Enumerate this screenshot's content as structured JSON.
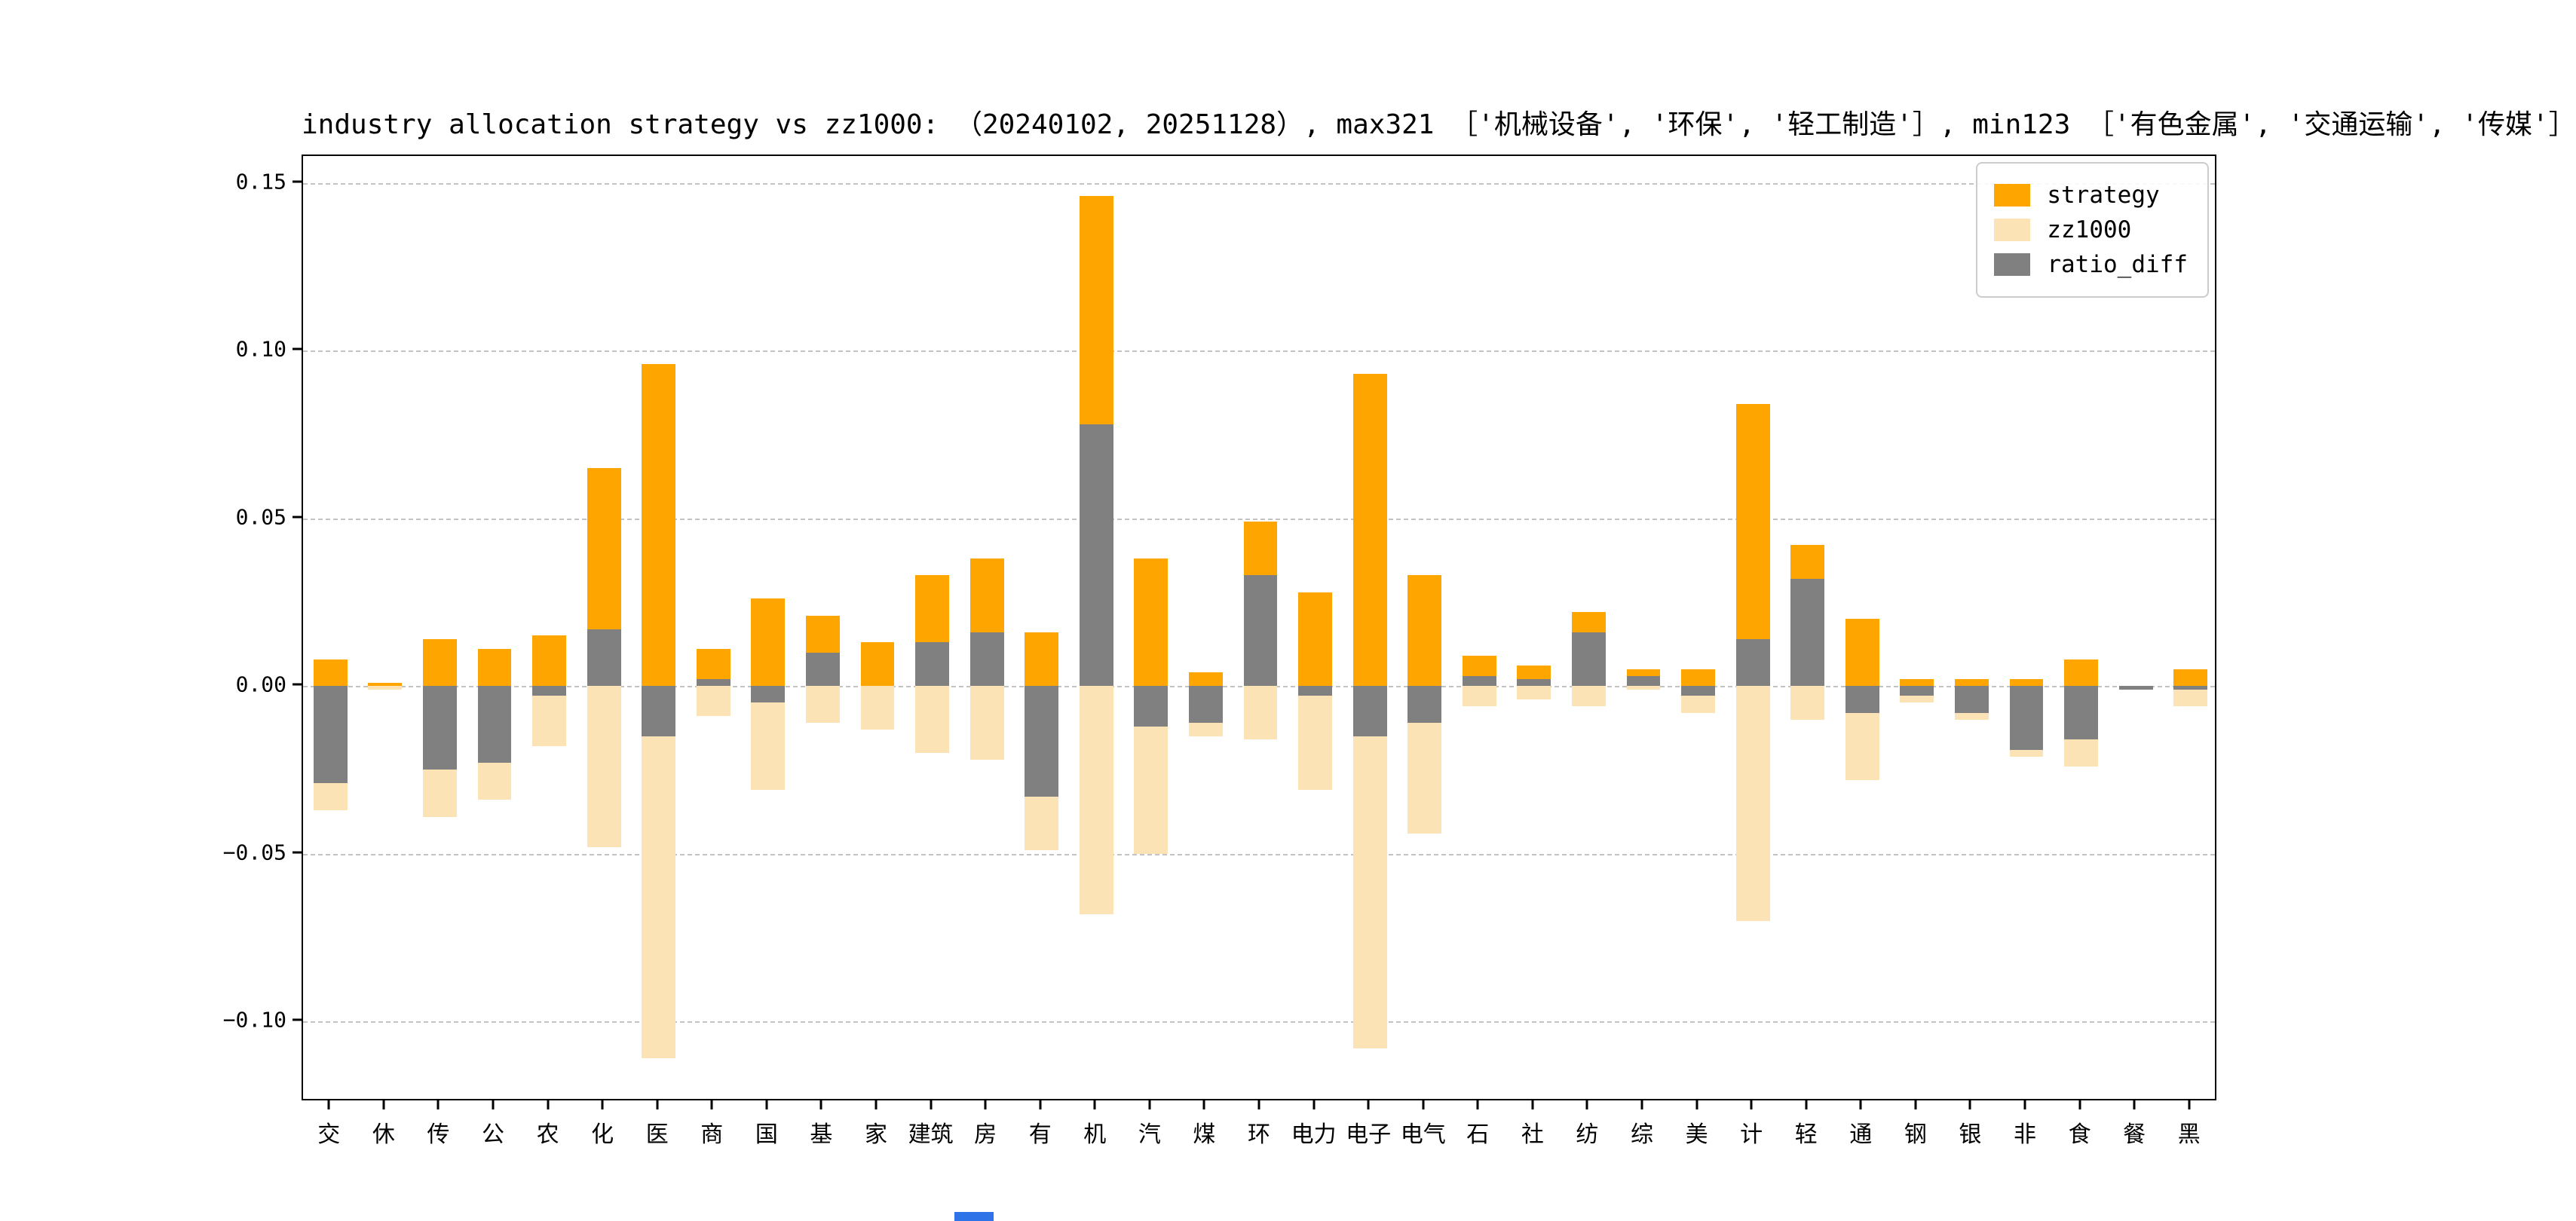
{
  "figure": {
    "background": "#ffffff",
    "grid_color": "#c3c3c3",
    "spine_color": "#000000",
    "artifact_color": "#2e74e8"
  },
  "chart_data": {
    "type": "bar",
    "title": "industry allocation strategy vs zz1000: （20240102, 20251128）, max321 ［'机械设备', '环保', '轻工制造'］, min123 ［'有色金属', '交通运输', '传媒'］",
    "xlabel": "",
    "ylabel": "",
    "ylim": [
      -0.124,
      0.158
    ],
    "grid": "dashed horizontal",
    "legend_position": "upper right",
    "yticks": [
      {
        "value": 0.15,
        "label": "0.15"
      },
      {
        "value": 0.1,
        "label": "0.10"
      },
      {
        "value": 0.05,
        "label": "0.05"
      },
      {
        "value": 0.0,
        "label": "0.00"
      },
      {
        "value": -0.05,
        "label": "−0.05"
      },
      {
        "value": -0.1,
        "label": "−0.10"
      }
    ],
    "categories": [
      "交",
      "休",
      "传",
      "公",
      "农",
      "化",
      "医",
      "商",
      "国",
      "基",
      "家",
      "建筑",
      "房",
      "有",
      "机",
      "汽",
      "煤",
      "环",
      "电力",
      "电子",
      "电气",
      "石",
      "社",
      "纺",
      "综",
      "美",
      "计",
      "轻",
      "通",
      "钢",
      "银",
      "非",
      "食",
      "餐",
      "黑"
    ],
    "series": [
      {
        "name": "strategy",
        "color": "#FFA500",
        "values": [
          0.008,
          0.001,
          0.014,
          0.011,
          0.015,
          0.065,
          0.096,
          0.011,
          0.026,
          0.021,
          0.013,
          0.033,
          0.038,
          0.016,
          0.146,
          0.038,
          0.004,
          0.049,
          0.028,
          0.093,
          0.033,
          0.009,
          0.006,
          0.022,
          0.005,
          0.005,
          0.084,
          0.042,
          0.02,
          0.002,
          0.002,
          0.002,
          0.008,
          0.0,
          0.005
        ]
      },
      {
        "name": "zz1000",
        "color": "#FBE3B6",
        "note": "benchmark weights plotted as negative bars",
        "values": [
          -0.037,
          -0.001,
          -0.039,
          -0.034,
          -0.018,
          -0.048,
          -0.111,
          -0.009,
          -0.031,
          -0.011,
          -0.013,
          -0.02,
          -0.022,
          -0.049,
          -0.068,
          -0.05,
          -0.015,
          -0.016,
          -0.031,
          -0.108,
          -0.044,
          -0.006,
          -0.004,
          -0.006,
          -0.001,
          -0.008,
          -0.07,
          -0.01,
          -0.028,
          -0.005,
          -0.01,
          -0.021,
          -0.024,
          -0.001,
          -0.006
        ]
      },
      {
        "name": "ratio_diff",
        "color": "#808080",
        "values": [
          -0.029,
          0.0,
          -0.025,
          -0.023,
          -0.003,
          0.017,
          -0.015,
          0.002,
          -0.005,
          0.01,
          0.0,
          0.013,
          0.016,
          -0.033,
          0.078,
          -0.012,
          -0.011,
          0.033,
          -0.003,
          -0.015,
          -0.011,
          0.003,
          0.002,
          0.016,
          0.003,
          -0.003,
          0.014,
          0.032,
          -0.008,
          -0.003,
          -0.008,
          -0.019,
          -0.016,
          -0.001,
          -0.001
        ]
      }
    ]
  }
}
